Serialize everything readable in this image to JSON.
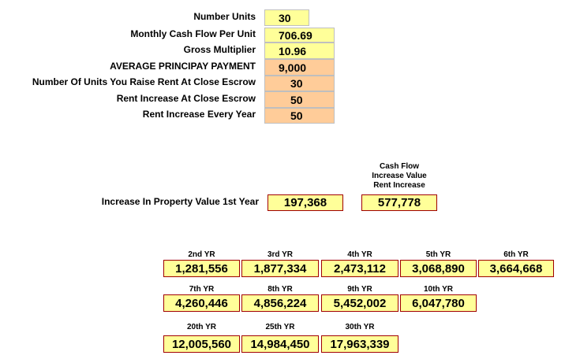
{
  "inputs": [
    {
      "label": "Number Units",
      "value": "30"
    },
    {
      "label": "Monthly Cash Flow Per Unit",
      "value": "706.69"
    },
    {
      "label": "Gross Multiplier",
      "value": "10.96"
    },
    {
      "label": "AVERAGE PRINCIPAY PAYMENT",
      "value": "9,000"
    },
    {
      "label": "Number Of Units You Raise Rent At Close Escrow",
      "value": "30"
    },
    {
      "label": "Rent Increase At Close Escrow",
      "value": "50"
    },
    {
      "label": "Rent Increase Every Year",
      "value": "50"
    }
  ],
  "colors": {
    "input_yellow": "#ffff99",
    "input_orange": "#ffcc99",
    "box_border": "#a00000"
  },
  "first_year": {
    "label": "Increase In Property Value 1st Year",
    "value": "197,368",
    "cashflow_header_1": "Cash Flow",
    "cashflow_header_2": "Increase Value",
    "cashflow_header_3": "Rent Increase",
    "cashflow_value": "577,778"
  },
  "years": [
    {
      "label": "2nd YR",
      "value": "1,281,556"
    },
    {
      "label": "3rd YR",
      "value": "1,877,334"
    },
    {
      "label": "4th YR",
      "value": "2,473,112"
    },
    {
      "label": "5th YR",
      "value": "3,068,890"
    },
    {
      "label": "6th YR",
      "value": "3,664,668"
    },
    {
      "label": "7th YR",
      "value": "4,260,446"
    },
    {
      "label": "8th YR",
      "value": "4,856,224"
    },
    {
      "label": "9th YR",
      "value": "5,452,002"
    },
    {
      "label": "10th YR",
      "value": "6,047,780"
    },
    {
      "label": "20th YR",
      "value": "12,005,560"
    },
    {
      "label": "25th YR",
      "value": "14,984,450"
    },
    {
      "label": "30th YR",
      "value": "17,963,339"
    }
  ]
}
